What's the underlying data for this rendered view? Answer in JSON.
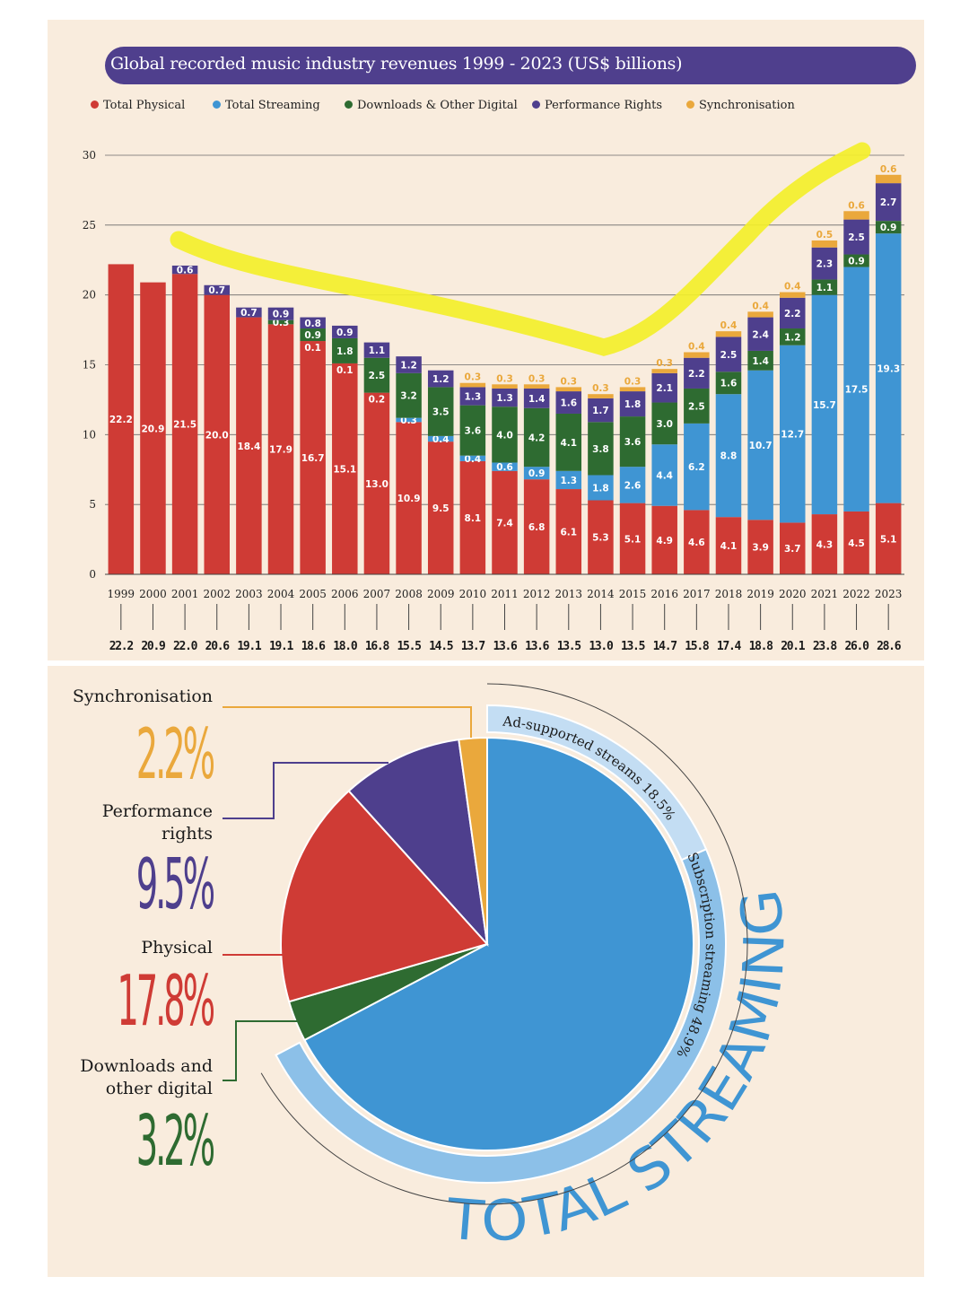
{
  "title": "Global recorded music industry revenues 1999 - 2023 (US$ billions)",
  "colors": {
    "physical": "#cf3b35",
    "streaming": "#3f95d3",
    "downloads": "#2e6b31",
    "performance": "#4e3f8d",
    "sync": "#eaa83c",
    "highlight": "#f3ef2a",
    "background": "#f9ecdd"
  },
  "chart_data": [
    {
      "type": "bar",
      "stacked": true,
      "title": "Global recorded music industry revenues 1999 - 2023 (US$ billions)",
      "categories": [
        "1999",
        "2000",
        "2001",
        "2002",
        "2003",
        "2004",
        "2005",
        "2006",
        "2007",
        "2008",
        "2009",
        "2010",
        "2011",
        "2012",
        "2013",
        "2014",
        "2015",
        "2016",
        "2017",
        "2018",
        "2019",
        "2020",
        "2021",
        "2022",
        "2023"
      ],
      "ylim": [
        0,
        30
      ],
      "yticks": [
        0,
        5,
        10,
        15,
        20,
        25,
        30
      ],
      "grid": true,
      "legend_position": "top",
      "series": [
        {
          "name": "Total Physical",
          "key": "physical",
          "values": [
            22.2,
            20.9,
            21.5,
            20.0,
            18.4,
            17.9,
            16.7,
            15.1,
            13.0,
            10.9,
            9.5,
            8.1,
            7.4,
            6.8,
            6.1,
            5.3,
            5.1,
            4.9,
            4.6,
            4.1,
            3.9,
            3.7,
            4.3,
            4.5,
            5.1
          ]
        },
        {
          "name": "Total Streaming",
          "key": "streaming",
          "values": [
            null,
            null,
            null,
            null,
            null,
            null,
            null,
            null,
            null,
            0.3,
            0.4,
            0.4,
            0.6,
            0.9,
            1.3,
            1.8,
            2.6,
            4.4,
            6.2,
            8.8,
            10.7,
            12.7,
            15.7,
            17.5,
            19.3
          ]
        },
        {
          "name": "Downloads & Other Digital",
          "key": "downloads",
          "values": [
            null,
            null,
            null,
            null,
            null,
            0.3,
            0.9,
            1.8,
            2.5,
            3.2,
            3.5,
            3.6,
            4.0,
            4.2,
            4.1,
            3.8,
            3.6,
            3.0,
            2.5,
            1.6,
            1.4,
            1.2,
            1.1,
            0.9,
            0.9
          ]
        },
        {
          "name": "Performance Rights",
          "key": "performance",
          "values": [
            null,
            null,
            0.6,
            0.7,
            0.7,
            0.9,
            0.8,
            0.9,
            1.1,
            1.2,
            1.2,
            1.3,
            1.3,
            1.4,
            1.6,
            1.7,
            1.8,
            2.1,
            2.2,
            2.5,
            2.4,
            2.2,
            2.3,
            2.5,
            2.7
          ]
        },
        {
          "name": "Synchronisation",
          "key": "sync",
          "values": [
            null,
            null,
            null,
            null,
            null,
            null,
            null,
            null,
            null,
            null,
            null,
            0.3,
            0.3,
            0.3,
            0.3,
            0.3,
            0.3,
            0.3,
            0.4,
            0.4,
            0.4,
            0.4,
            0.5,
            0.6,
            0.6
          ]
        }
      ],
      "extra_labels": [
        {
          "category": "2005",
          "text": "0.1"
        },
        {
          "category": "2006",
          "text": "0.1"
        },
        {
          "category": "2007",
          "text": "0.2"
        }
      ],
      "totals": [
        "22.2",
        "20.9",
        "22.0",
        "20.6",
        "19.1",
        "19.1",
        "18.6",
        "18.0",
        "16.8",
        "15.5",
        "14.5",
        "13.7",
        "13.6",
        "13.6",
        "13.5",
        "13.0",
        "13.5",
        "14.7",
        "15.8",
        "17.4",
        "18.8",
        "20.1",
        "23.8",
        "26.0",
        "28.6"
      ]
    },
    {
      "type": "pie",
      "slices": [
        {
          "key": "streaming",
          "value": 67.3
        },
        {
          "key": "downloads",
          "value": 3.2
        },
        {
          "key": "physical",
          "value": 17.8
        },
        {
          "key": "performance",
          "value": 9.5
        },
        {
          "key": "sync",
          "value": 2.2
        }
      ],
      "streaming_breakdown": [
        {
          "label": "Ad-supported streams",
          "value": "18.5%"
        },
        {
          "label": "Subscription streaming",
          "value": "48.9%"
        }
      ],
      "callouts": [
        {
          "key": "sync",
          "lines": [
            "Synchronisation"
          ],
          "value": "2.2%"
        },
        {
          "key": "performance",
          "lines": [
            "Performance",
            "rights"
          ],
          "value": "9.5%"
        },
        {
          "key": "physical",
          "lines": [
            "Physical"
          ],
          "value": "17.8%"
        },
        {
          "key": "downloads",
          "lines": [
            "Downloads and",
            "other digital"
          ],
          "value": "3.2%"
        }
      ],
      "total_streaming_label": "TOTAL STREAMING",
      "total_streaming_value": "67.3%"
    }
  ]
}
